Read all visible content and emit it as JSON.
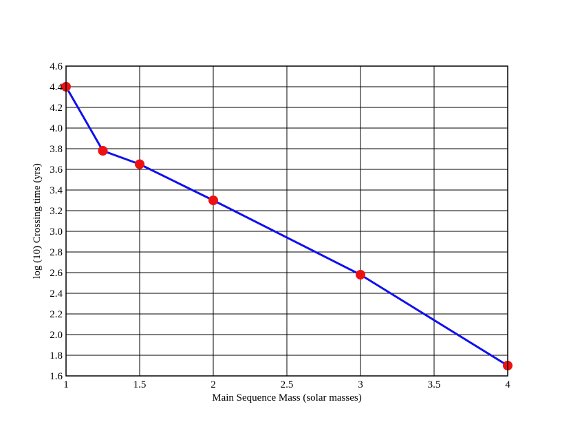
{
  "chart_data": {
    "type": "line",
    "title": "",
    "xlabel": "Main Sequence Mass (solar masses)",
    "ylabel": "log (10) Crossing time (yrs)",
    "xlim": [
      1,
      4
    ],
    "ylim": [
      1.6,
      4.6
    ],
    "grid": true,
    "x_ticks": [
      "1",
      "1.5",
      "2",
      "2.5",
      "3",
      "3.5",
      "4"
    ],
    "y_ticks": [
      "1.6",
      "1.8",
      "2.0",
      "2.2",
      "2.4",
      "2.6",
      "2.8",
      "3.0",
      "3.2",
      "3.4",
      "3.6",
      "3.8",
      "4.0",
      "4.2",
      "4.4",
      "4.6"
    ],
    "series": [
      {
        "x": [
          1,
          1.25,
          1.5,
          2,
          3,
          4
        ],
        "y": [
          4.4,
          3.78,
          3.65,
          3.3,
          2.58,
          1.7
        ],
        "line_color": "#1010ee",
        "marker_color": "#ee1111"
      }
    ]
  }
}
